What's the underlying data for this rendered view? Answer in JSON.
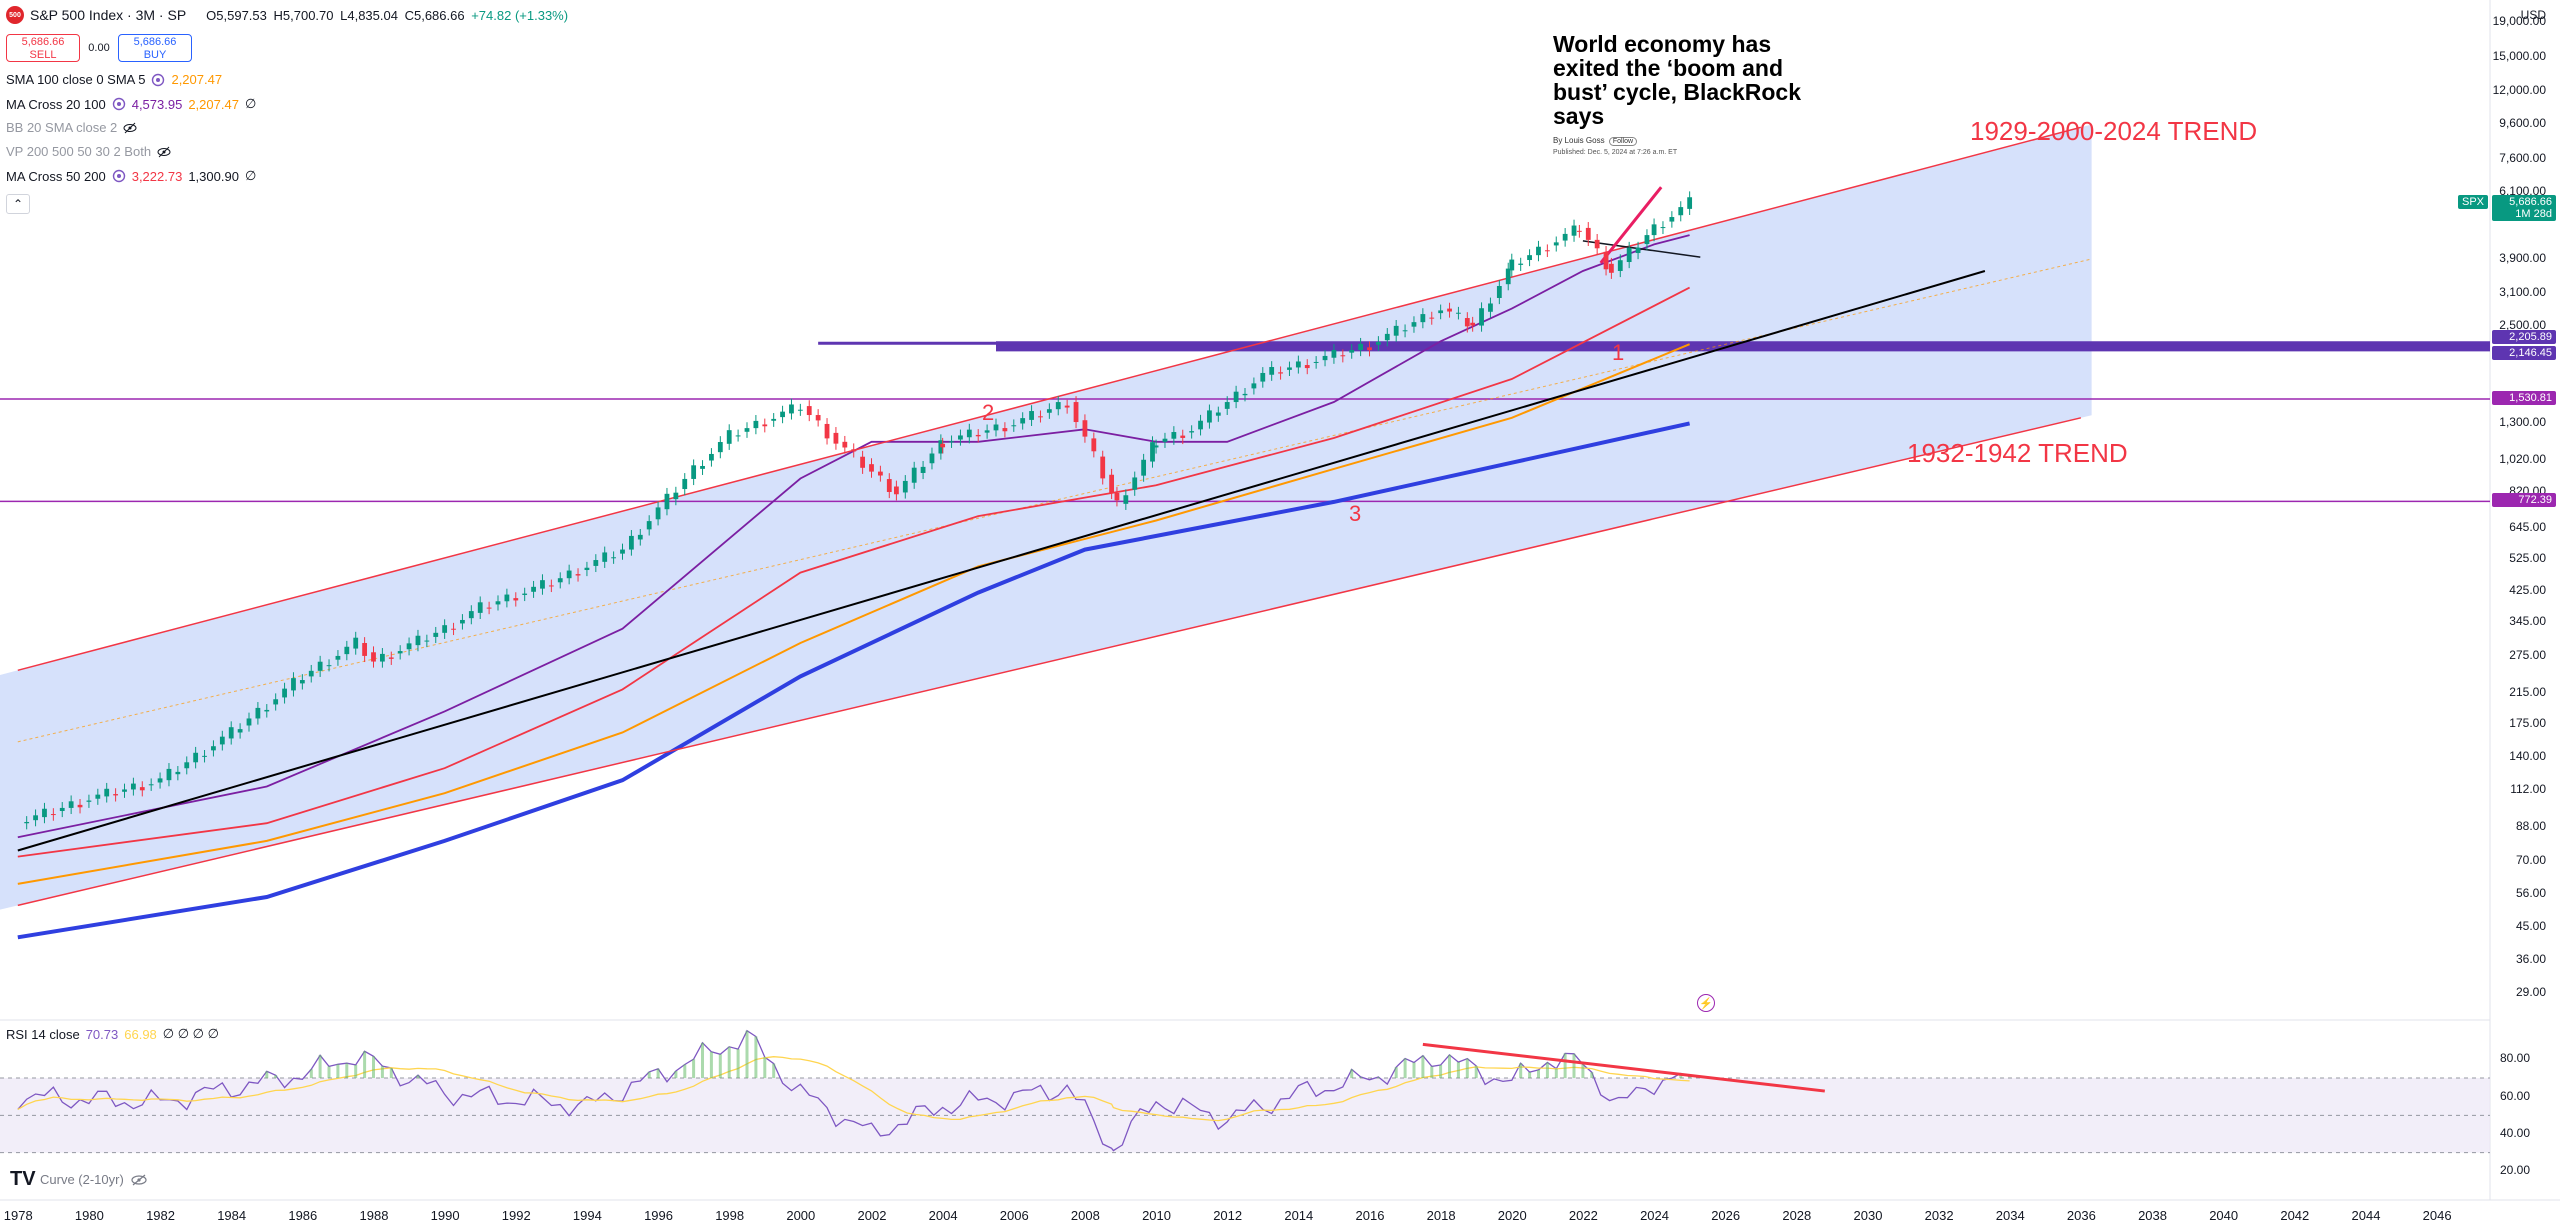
{
  "header": {
    "symbol_title": "S&P 500 Index · 3M · SP",
    "logo_text": "500",
    "open": "O5,597.53",
    "high": "H5,700.70",
    "low": "L4,835.04",
    "close": "C5,686.66",
    "change": "+74.82 (+1.33%)"
  },
  "trade": {
    "sell_price": "5,686.66",
    "sell_label": "SELL",
    "spread": "0.00",
    "buy_price": "5,686.66",
    "buy_label": "BUY"
  },
  "indicators": [
    {
      "name": "SMA 100 close 0 SMA 5",
      "v1": "2,207.47",
      "v1_color": "#ff9800",
      "v2": "",
      "v2_color": "",
      "muted": false
    },
    {
      "name": "MA Cross 20 100",
      "v1": "4,573.95",
      "v1_color": "#7b1fa2",
      "v2": "2,207.47",
      "v2_color": "#ff9800",
      "muted": false
    },
    {
      "name": "BB 20 SMA close 2",
      "v1": "",
      "v1_color": "",
      "v2": "",
      "v2_color": "",
      "muted": true
    },
    {
      "name": "VP 200 500 50 30 2 Both",
      "v1": "",
      "v1_color": "",
      "v2": "",
      "v2_color": "",
      "muted": true
    },
    {
      "name": "MA Cross 50 200",
      "v1": "3,222.73",
      "v1_color": "#f23645",
      "v2": "1,300.90",
      "v2_color": "#131722",
      "muted": false
    }
  ],
  "news": {
    "headline": "World economy has exited the ‘boom and bust’ cycle, BlackRock says",
    "byline": "By Louis Goss",
    "follow": "Follow",
    "published": "Published: Dec. 5, 2024 at 7:26 a.m. ET"
  },
  "annotations": {
    "trend_upper": "1929-2000-2024 TREND",
    "trend_lower": "1932-1942 TREND",
    "mark1": "1",
    "mark2": "2",
    "mark3": "3"
  },
  "price_axis": {
    "currency": "USD",
    "ticks": [
      "19,000.00",
      "15,000.00",
      "12,000.00",
      "9,600.00",
      "7,600.00",
      "6,100.00",
      "3,900.00",
      "3,100.00",
      "2,500.00",
      "1,300.00",
      "1,020.00",
      "820.00",
      "645.00",
      "525.00",
      "425.00",
      "345.00",
      "275.00",
      "215.00",
      "175.00",
      "140.00",
      "112.00",
      "88.00",
      "70.00",
      "56.00",
      "45.00",
      "36.00",
      "29.00"
    ],
    "badges": [
      {
        "label": "5,686.66",
        "sub": "1M 28d",
        "color": "#089981",
        "value": 5686.66
      },
      {
        "label": "2,205.89",
        "sub": "",
        "color": "#5e35b1",
        "value": 2205.89
      },
      {
        "label": "2,146.45",
        "sub": "",
        "color": "#5e35b1",
        "value": 2146.45
      },
      {
        "label": "1,530.81",
        "sub": "",
        "color": "#9c27b0",
        "value": 1530.81
      },
      {
        "label": "772.39",
        "sub": "",
        "color": "#9c27b0",
        "value": 772.39
      }
    ],
    "spx_tag": "SPX"
  },
  "rsi": {
    "name": "RSI 14 close",
    "value1": "70.73",
    "value2": "66.98",
    "empties": "∅ ∅ ∅ ∅",
    "ticks": [
      "80.00",
      "60.00",
      "40.00",
      "20.00"
    ]
  },
  "curve": {
    "label": "Curve (2-10yr)"
  },
  "time_axis": {
    "labels": [
      "1978",
      "1980",
      "1982",
      "1984",
      "1986",
      "1988",
      "1990",
      "1992",
      "1994",
      "1996",
      "1998",
      "2000",
      "2002",
      "2004",
      "2006",
      "2008",
      "2010",
      "2012",
      "2014",
      "2016",
      "2018",
      "2020",
      "2022",
      "2024",
      "2026",
      "2028",
      "2030",
      "2032",
      "2034",
      "2036",
      "2038",
      "2040",
      "2042",
      "2044",
      "2046"
    ]
  },
  "chart_data": {
    "type": "line",
    "title": "S&P 500 Index · 3M · SP",
    "ylabel": "USD",
    "yscale": "log",
    "ylim": [
      25,
      22000
    ],
    "xlim": [
      1977.5,
      2047.5
    ],
    "series": [
      {
        "name": "",
        "role": "price_close",
        "color": "#089981",
        "x": [
          1978,
          1980,
          1982,
          1984,
          1986,
          1987.5,
          1988,
          1990,
          1991,
          1993,
          1995,
          1997,
          1998,
          2000,
          2001,
          2002.7,
          2004,
          2006,
          2007.5,
          2008.9,
          2010,
          2011,
          2013,
          2015,
          2016,
          2018,
          2018.9,
          2020,
          2021.9,
          2022.8,
          2024,
          2025
        ],
        "y": [
          90,
          106,
          120,
          165,
          240,
          300,
          265,
          330,
          380,
          450,
          560,
          960,
          1200,
          1460,
          1150,
          820,
          1150,
          1300,
          1500,
          760,
          1150,
          1250,
          1800,
          2050,
          2200,
          2800,
          2500,
          3750,
          4800,
          3600,
          4800,
          5686.66
        ]
      },
      {
        "name": "",
        "role": "ma20",
        "color": "#7b1fa2",
        "x": [
          1978,
          1985,
          1990,
          1995,
          2000,
          2002,
          2005,
          2008,
          2010,
          2012,
          2015,
          2018,
          2020,
          2022,
          2024,
          2025
        ],
        "y": [
          82,
          115,
          190,
          330,
          900,
          1150,
          1150,
          1250,
          1150,
          1150,
          1500,
          2250,
          2800,
          3600,
          4300,
          4573.95
        ]
      },
      {
        "name": "",
        "role": "ma50",
        "color": "#f23645",
        "x": [
          1978,
          1985,
          1990,
          1995,
          2000,
          2005,
          2010,
          2015,
          2020,
          2025
        ],
        "y": [
          72,
          90,
          130,
          220,
          480,
          700,
          860,
          1180,
          1750,
          3222.73
        ]
      },
      {
        "name": "",
        "role": "sma100",
        "color": "#ff9800",
        "x": [
          1978,
          1985,
          1990,
          1995,
          2000,
          2005,
          2010,
          2015,
          2020,
          2025
        ],
        "y": [
          60,
          80,
          110,
          165,
          300,
          500,
          680,
          960,
          1350,
          2207.47
        ]
      },
      {
        "name": "",
        "role": "ma200",
        "color": "#2f3fe0",
        "x": [
          1978,
          1985,
          1990,
          1995,
          2000,
          2005,
          2008,
          2015,
          2020,
          2025
        ],
        "y": [
          42,
          55,
          80,
          120,
          240,
          420,
          560,
          770,
          1000,
          1300.9
        ]
      },
      {
        "name": "",
        "role": "trend_black",
        "color": "#000000",
        "x": [
          1978,
          2033.3
        ],
        "y": [
          75,
          3600
        ]
      },
      {
        "name": "",
        "role": "channel_upper",
        "color": "#f23645",
        "x": [
          1978,
          2036
        ],
        "y": [
          250,
          9400
        ]
      },
      {
        "name": "",
        "role": "channel_lower",
        "color": "#f23645",
        "x": [
          1978,
          2036
        ],
        "y": [
          52,
          1350
        ]
      },
      {
        "name": "",
        "role": "resistance_2022_2025",
        "color": "#131722",
        "x": [
          2022,
          2025.3
        ],
        "y": [
          4400,
          3950
        ]
      },
      {
        "name": "",
        "role": "recent_red_trend",
        "color": "#e91e63",
        "x": [
          2022.5,
          2024.2
        ],
        "y": [
          3800,
          6300
        ]
      }
    ],
    "horizontal_levels": [
      2205.89,
      2146.45,
      1530.81,
      772.39
    ],
    "rsi_series": {
      "x": [
        1978,
        1982,
        1986,
        1987.5,
        1990,
        1994,
        1997,
        1998.5,
        2000,
        2002,
        2004,
        2006,
        2007.5,
        2008.8,
        2010,
        2012,
        2014,
        2016,
        2018,
        2019,
        2020,
        2021,
        2022,
        2023,
        2024,
        2025
      ],
      "y": [
        60,
        57,
        72,
        82,
        62,
        55,
        80,
        92,
        62,
        40,
        55,
        60,
        65,
        32,
        58,
        48,
        62,
        70,
        82,
        74,
        68,
        80,
        78,
        55,
        68,
        70.73
      ]
    },
    "rsi_divergence": {
      "x": [
        2017.5,
        2028.8
      ],
      "y": [
        88,
        63
      ]
    },
    "rsi_ylim": [
      10,
      100
    ]
  }
}
